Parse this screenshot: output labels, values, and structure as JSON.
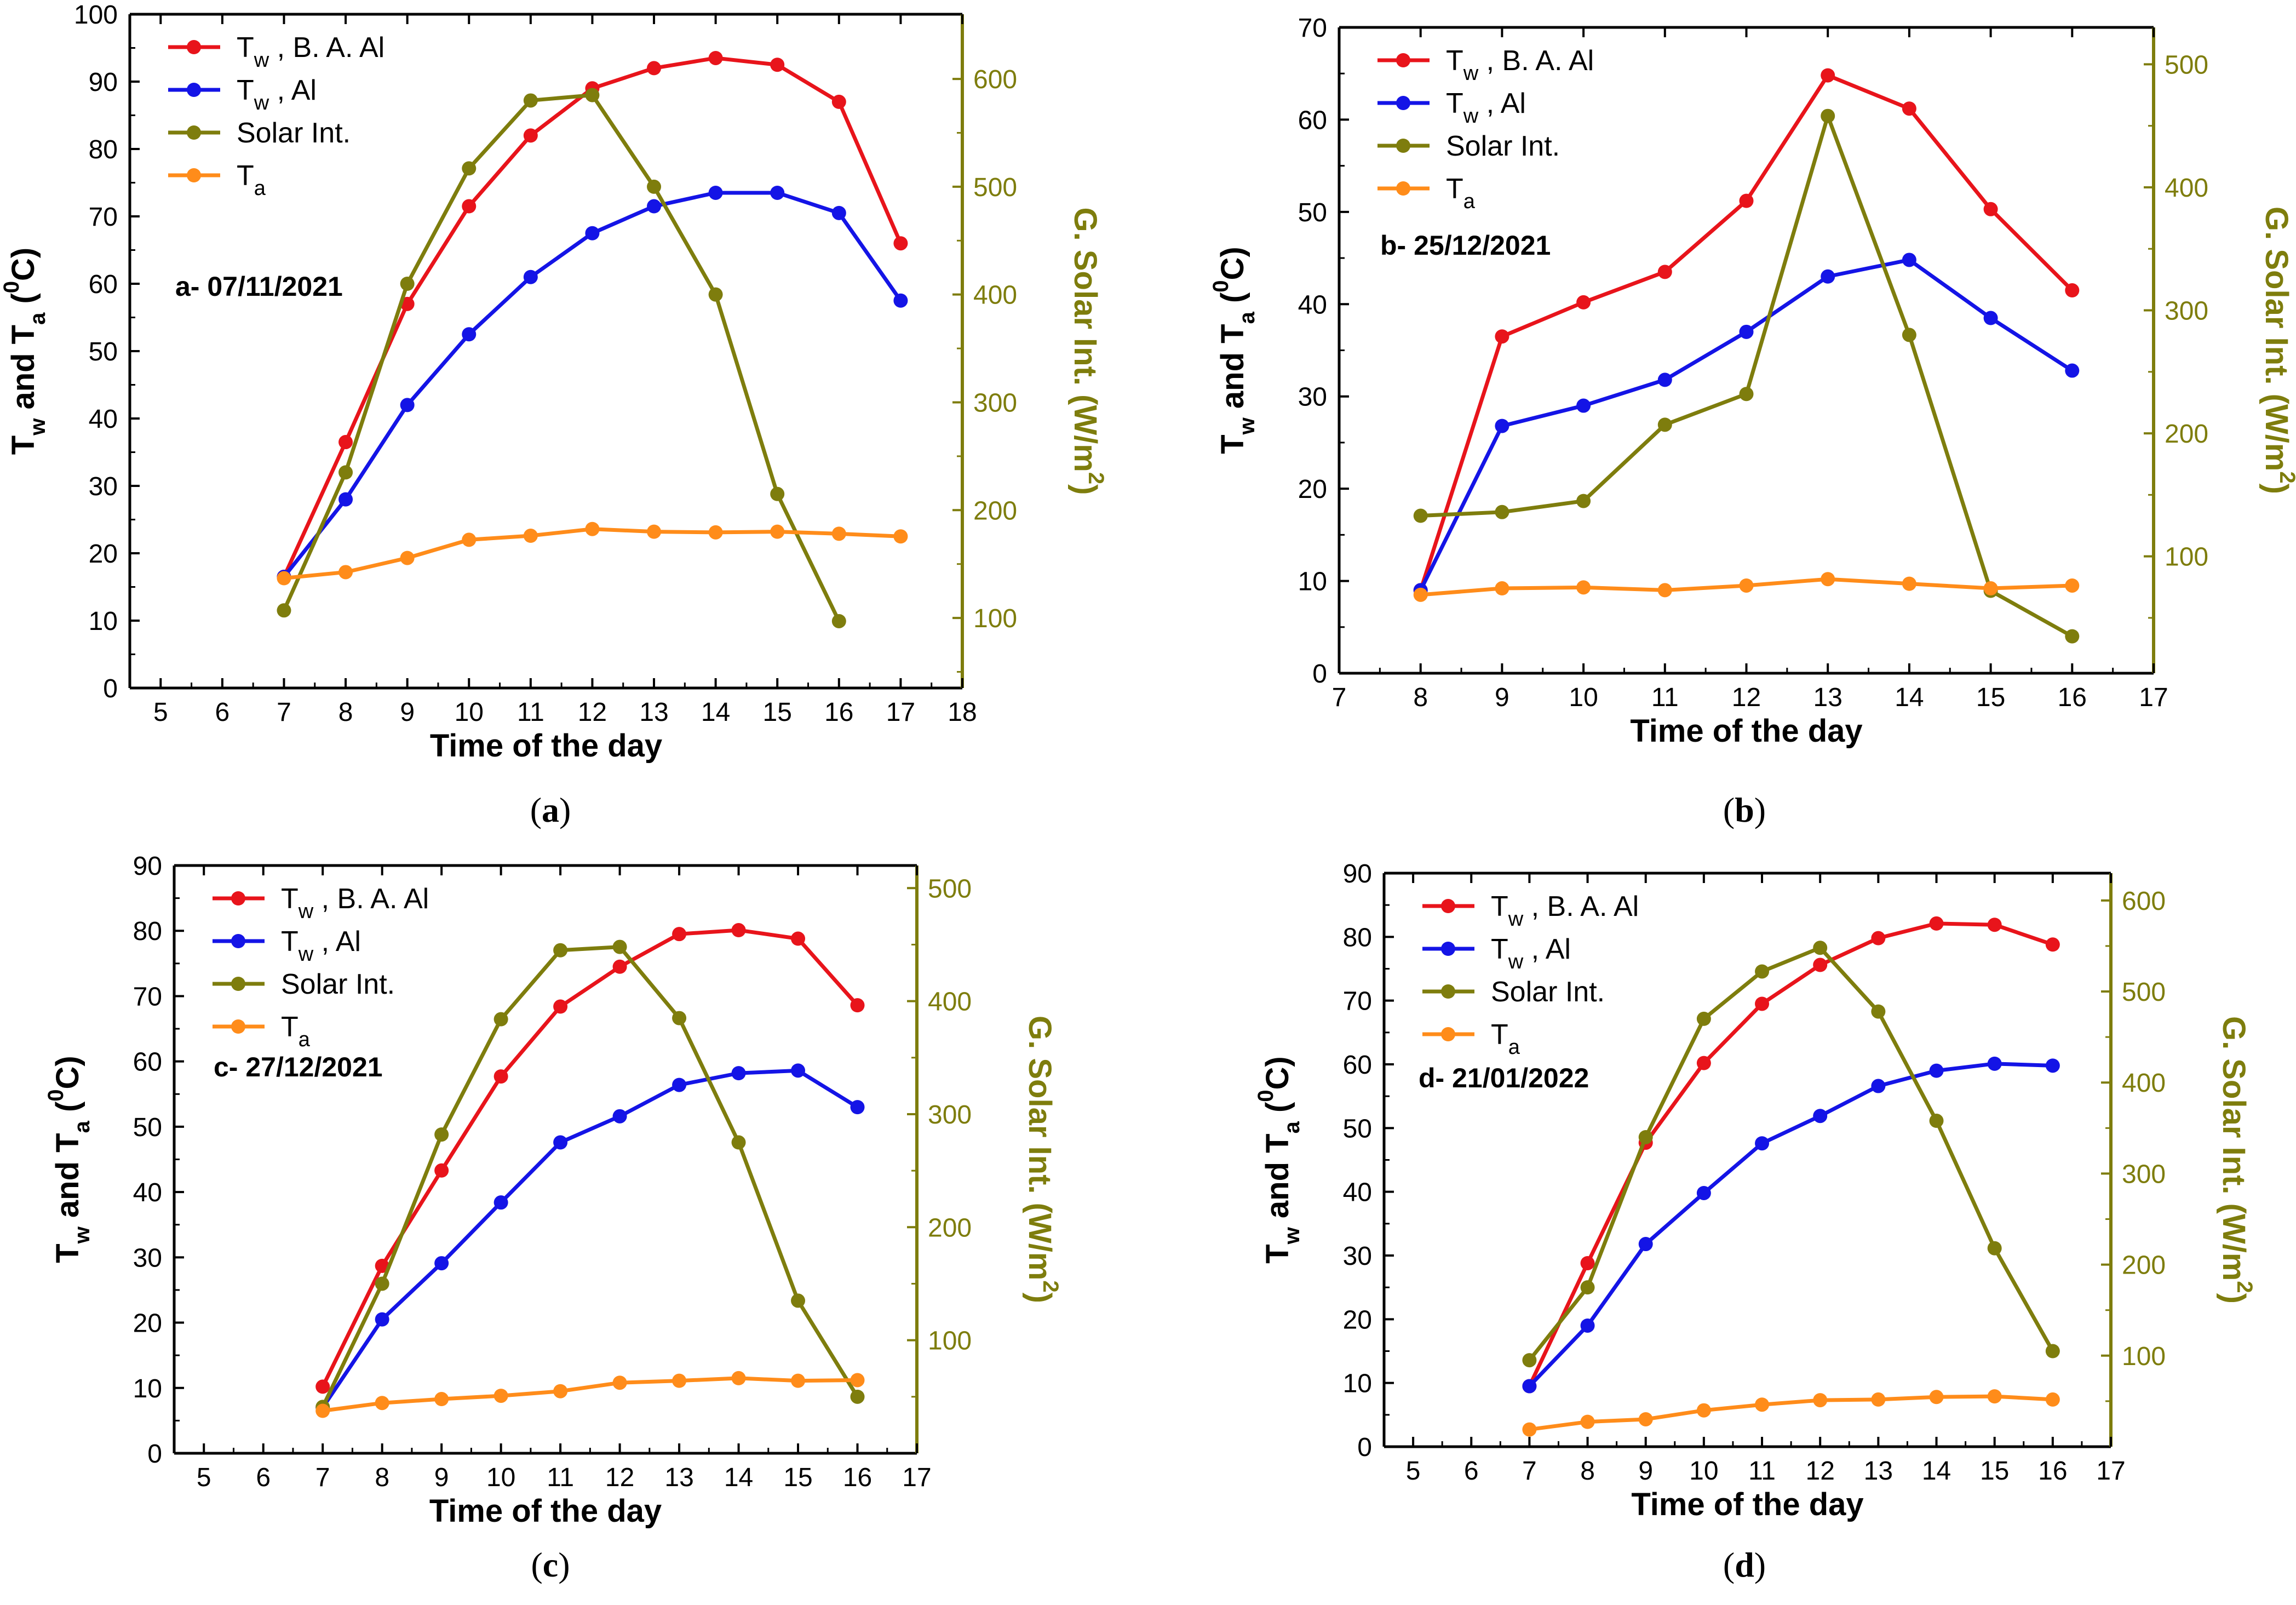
{
  "colors": {
    "tw_baal": "#e8141b",
    "tw_al": "#1414e6",
    "solar": "#7e7d0d",
    "ta": "#ff8c1a",
    "axis": "#000000",
    "right_axis": "#7e7d0d"
  },
  "chart_data": [
    {
      "type": "line",
      "panel": "a",
      "caption": "(a)",
      "date_label": "a- 07/11/2021",
      "xlabel": "Time of the day",
      "ylabel_left": "Tw and Ta (0C)",
      "ylabel_right": "G. Solar Int. (W/m2)",
      "xlim": [
        4.5,
        18
      ],
      "xticks": [
        5,
        6,
        7,
        8,
        9,
        10,
        11,
        12,
        13,
        14,
        15,
        16,
        17,
        18
      ],
      "ylim_left": [
        0,
        100
      ],
      "yticks_left": [
        0,
        10,
        20,
        30,
        40,
        50,
        60,
        70,
        80,
        90,
        100
      ],
      "ylim_right": [
        35,
        660
      ],
      "yticks_right": [
        100,
        200,
        300,
        400,
        500,
        600
      ],
      "legend": [
        "Tw , B. A. Al",
        "Tw , Al",
        "Solar Int.",
        "Ta"
      ],
      "series": [
        {
          "name": "Tw , B. A. Al",
          "axis": "left",
          "x": [
            7,
            8,
            9,
            10,
            11,
            12,
            13,
            14,
            15,
            16,
            17
          ],
          "values": [
            16.5,
            36.5,
            57,
            71.5,
            82,
            89,
            92,
            93.5,
            92.5,
            87,
            66
          ]
        },
        {
          "name": "Tw , Al",
          "axis": "left",
          "x": [
            7,
            8,
            9,
            10,
            11,
            12,
            13,
            14,
            15,
            16,
            17
          ],
          "values": [
            16.5,
            28,
            42,
            52.5,
            61,
            67.5,
            71.5,
            73.5,
            73.5,
            70.5,
            57.5
          ]
        },
        {
          "name": "Solar Int.",
          "axis": "right",
          "x": [
            7,
            8,
            9,
            10,
            11,
            12,
            13,
            14,
            15,
            16
          ],
          "values": [
            107,
            235,
            410,
            517,
            580,
            585,
            500,
            400,
            215,
            97
          ]
        },
        {
          "name": "Ta",
          "axis": "left",
          "x": [
            7,
            8,
            9,
            10,
            11,
            12,
            13,
            14,
            15,
            16,
            17
          ],
          "values": [
            16.3,
            17.2,
            19.3,
            22,
            22.6,
            23.6,
            23.2,
            23.1,
            23.2,
            22.9,
            22.5
          ]
        }
      ]
    },
    {
      "type": "line",
      "panel": "b",
      "caption": "(b)",
      "date_label": "b- 25/12/2021",
      "xlabel": "Time of the day",
      "ylabel_left": "Tw and Ta (0C)",
      "ylabel_right": "G. Solar Int. (W/m2)",
      "xlim": [
        7,
        17
      ],
      "xticks": [
        7,
        8,
        9,
        10,
        11,
        12,
        13,
        14,
        15,
        16,
        17
      ],
      "ylim_left": [
        0,
        70
      ],
      "yticks_left": [
        0,
        10,
        20,
        30,
        40,
        50,
        60,
        70
      ],
      "ylim_right": [
        5,
        530
      ],
      "yticks_right": [
        100,
        200,
        300,
        400,
        500
      ],
      "legend": [
        "Tw , B. A. Al",
        "Tw , Al",
        "Solar Int.",
        "Ta"
      ],
      "series": [
        {
          "name": "Tw , B. A. Al",
          "axis": "left",
          "x": [
            8,
            9,
            10,
            11,
            12,
            13,
            14,
            15,
            16
          ],
          "values": [
            9,
            36.5,
            40.2,
            43.5,
            51.2,
            64.8,
            61.2,
            50.3,
            41.5
          ]
        },
        {
          "name": "Tw , Al",
          "axis": "left",
          "x": [
            8,
            9,
            10,
            11,
            12,
            13,
            14,
            15,
            16
          ],
          "values": [
            9,
            26.8,
            29,
            31.8,
            37,
            43,
            44.8,
            38.5,
            32.8
          ]
        },
        {
          "name": "Solar Int.",
          "axis": "right",
          "x": [
            8,
            9,
            10,
            11,
            12,
            13,
            14,
            15,
            16
          ],
          "values": [
            133,
            136,
            145,
            207,
            232,
            458,
            280,
            72,
            35
          ]
        },
        {
          "name": "Ta",
          "axis": "left",
          "x": [
            8,
            9,
            10,
            11,
            12,
            13,
            14,
            15,
            16
          ],
          "values": [
            8.5,
            9.2,
            9.3,
            9,
            9.5,
            10.2,
            9.7,
            9.2,
            9.5
          ]
        }
      ]
    },
    {
      "type": "line",
      "panel": "c",
      "caption": "(c)",
      "date_label": "c- 27/12/2021",
      "xlabel": "Time of the day",
      "ylabel_left": "Tw and Ta (0C)",
      "ylabel_right": "G. Solar Int. (W/m2)",
      "xlim": [
        4.5,
        17
      ],
      "xticks": [
        5,
        6,
        7,
        8,
        9,
        10,
        11,
        12,
        13,
        14,
        15,
        16,
        17
      ],
      "ylim_left": [
        0,
        90
      ],
      "yticks_left": [
        0,
        10,
        20,
        30,
        40,
        50,
        60,
        70,
        80,
        90
      ],
      "ylim_right": [
        0,
        520
      ],
      "yticks_right": [
        100,
        200,
        300,
        400,
        500
      ],
      "legend": [
        "Tw , B. A. Al",
        "Tw , Al",
        "Solar Int.",
        "Ta"
      ],
      "series": [
        {
          "name": "Tw , B. A. Al",
          "axis": "left",
          "x": [
            7,
            8,
            9,
            10,
            11,
            12,
            13,
            14,
            15,
            16
          ],
          "values": [
            10.2,
            28.7,
            43.3,
            57.7,
            68.4,
            74.5,
            79.5,
            80.1,
            78.8,
            68.6
          ]
        },
        {
          "name": "Tw , Al",
          "axis": "left",
          "x": [
            7,
            8,
            9,
            10,
            11,
            12,
            13,
            14,
            15,
            16
          ],
          "values": [
            7,
            20.5,
            29.1,
            38.4,
            47.6,
            51.6,
            56.4,
            58.2,
            58.6,
            53
          ]
        },
        {
          "name": "Solar Int.",
          "axis": "right",
          "x": [
            7,
            8,
            9,
            10,
            11,
            12,
            13,
            14,
            15,
            16
          ],
          "values": [
            41,
            150,
            282,
            384,
            445,
            448,
            385,
            275,
            135,
            50
          ]
        },
        {
          "name": "Ta",
          "axis": "left",
          "x": [
            7,
            8,
            9,
            10,
            11,
            12,
            13,
            14,
            15,
            16
          ],
          "values": [
            6.5,
            7.7,
            8.3,
            8.8,
            9.5,
            10.8,
            11.1,
            11.5,
            11.1,
            11.2
          ]
        }
      ]
    },
    {
      "type": "line",
      "panel": "d",
      "caption": "(d)",
      "date_label": "d- 21/01/2022",
      "xlabel": "Time of the day",
      "ylabel_left": "Tw and Ta (0C)",
      "ylabel_right": "G. Solar Int. (W/m2)",
      "xlim": [
        4.5,
        17
      ],
      "xticks": [
        5,
        6,
        7,
        8,
        9,
        10,
        11,
        12,
        13,
        14,
        15,
        16,
        17
      ],
      "ylim_left": [
        0,
        90
      ],
      "yticks_left": [
        0,
        10,
        20,
        30,
        40,
        50,
        60,
        70,
        80,
        90
      ],
      "ylim_right": [
        0,
        630
      ],
      "yticks_right": [
        100,
        200,
        300,
        400,
        500,
        600
      ],
      "legend": [
        "Tw , B. A. Al",
        "Tw , Al",
        "Solar Int.",
        "Ta"
      ],
      "series": [
        {
          "name": "Tw , B. A. Al",
          "axis": "left",
          "x": [
            7,
            8,
            9,
            10,
            11,
            12,
            13,
            14,
            15,
            16
          ],
          "values": [
            9.5,
            28.8,
            47.7,
            60.2,
            69.5,
            75.6,
            79.8,
            82.1,
            81.9,
            78.8
          ]
        },
        {
          "name": "Tw , Al",
          "axis": "left",
          "x": [
            7,
            8,
            9,
            10,
            11,
            12,
            13,
            14,
            15,
            16
          ],
          "values": [
            9.5,
            19,
            31.8,
            39.8,
            47.6,
            51.9,
            56.6,
            59,
            60.1,
            59.8
          ]
        },
        {
          "name": "Solar Int.",
          "axis": "right",
          "x": [
            7,
            8,
            9,
            10,
            11,
            12,
            13,
            14,
            15,
            16
          ],
          "values": [
            95,
            175,
            340,
            470,
            522,
            548,
            478,
            358,
            218,
            105
          ]
        },
        {
          "name": "Ta",
          "axis": "left",
          "x": [
            7,
            8,
            9,
            10,
            11,
            12,
            13,
            14,
            15,
            16
          ],
          "values": [
            2.7,
            3.9,
            4.3,
            5.7,
            6.6,
            7.3,
            7.4,
            7.8,
            7.9,
            7.4
          ]
        }
      ]
    }
  ]
}
